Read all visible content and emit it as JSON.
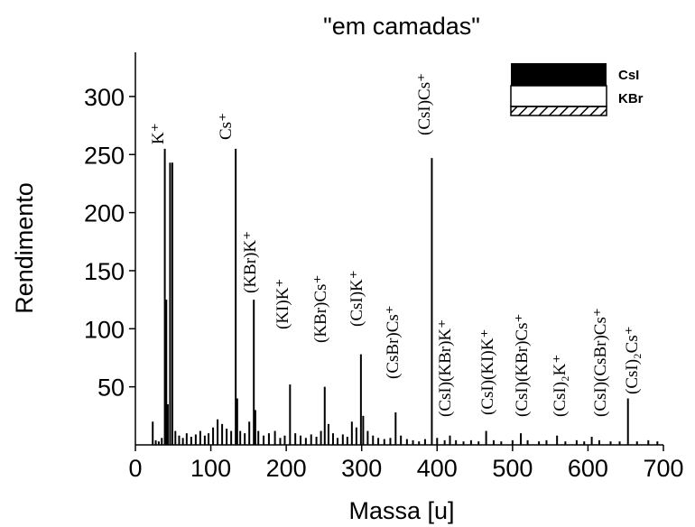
{
  "chart_data": {
    "type": "stem",
    "title": "\"em camadas\"",
    "x_label": "Massa [u]",
    "y_label": "Rendimento",
    "xlim": [
      0,
      700
    ],
    "xticks": [
      0,
      100,
      200,
      300,
      400,
      500,
      600,
      700
    ],
    "ylim": [
      0,
      338
    ],
    "yticks": [
      50,
      100,
      150,
      200,
      250,
      300
    ],
    "color": "#000000",
    "layers": [
      "CsI",
      "KBr"
    ],
    "annotations": [
      "K⁺",
      "Cs⁺",
      "(KBr)K⁺",
      "(KI)K⁺",
      "(KBr)Cs⁺",
      "(CsI)K⁺",
      "(CsBr)Cs⁺",
      "(CsI)Cs⁺",
      "(CsI)(KBr)K⁺",
      "(CsI)(KI)K⁺",
      "(CsI)(KBr)Cs⁺",
      "(CsI)₂K⁺",
      "(CsI)(CsBr)Cs⁺",
      "(CsI)₂Cs⁺"
    ],
    "x": [
      23,
      27,
      31,
      35,
      39,
      41,
      43,
      46,
      49,
      53,
      58,
      63,
      68,
      74,
      80,
      86,
      92,
      97,
      103,
      109,
      115,
      121,
      127,
      133,
      135,
      139,
      145,
      151,
      157,
      159,
      163,
      170,
      177,
      185,
      192,
      198,
      205,
      212,
      219,
      226,
      233,
      240,
      246,
      251,
      256,
      262,
      268,
      275,
      281,
      287,
      293,
      299,
      302,
      308,
      315,
      322,
      330,
      338,
      345,
      352,
      360,
      368,
      376,
      384,
      393,
      400,
      410,
      417,
      425,
      435,
      445,
      455,
      465,
      475,
      485,
      500,
      511,
      520,
      535,
      545,
      559,
      570,
      585,
      595,
      605,
      615,
      630,
      642,
      653,
      665,
      680,
      692
    ],
    "values": [
      20,
      4,
      3,
      6,
      255,
      125,
      35,
      243,
      243,
      12,
      8,
      6,
      10,
      7,
      9,
      12,
      8,
      10,
      15,
      22,
      18,
      14,
      12,
      255,
      40,
      12,
      10,
      20,
      125,
      30,
      12,
      8,
      10,
      12,
      6,
      8,
      52,
      10,
      8,
      6,
      9,
      7,
      12,
      50,
      18,
      10,
      6,
      9,
      7,
      20,
      15,
      78,
      25,
      12,
      8,
      6,
      5,
      6,
      28,
      8,
      5,
      4,
      3,
      5,
      247,
      6,
      4,
      8,
      4,
      3,
      4,
      3,
      12,
      4,
      3,
      4,
      10,
      4,
      3,
      4,
      8,
      3,
      4,
      3,
      7,
      4,
      3,
      3,
      40,
      3,
      4,
      3
    ]
  }
}
